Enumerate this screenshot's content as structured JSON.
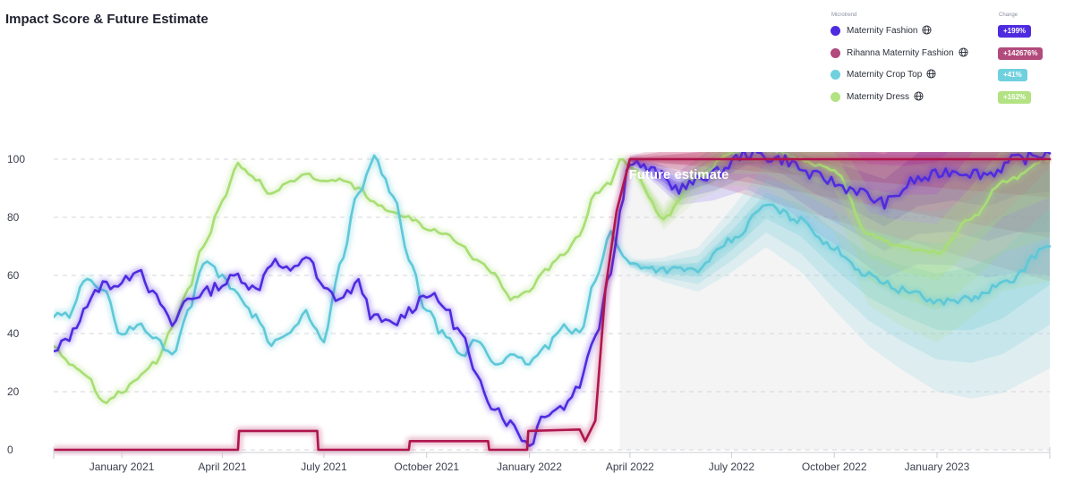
{
  "title": "Impact Score & Future Estimate",
  "legend": {
    "header_name": "Microtrend",
    "header_change": "Change",
    "items": [
      {
        "label": "Maternity Fashion",
        "change": "+199%",
        "color": "#4f2be0",
        "badge_color": "#4f2be0",
        "icon": "globe-icon"
      },
      {
        "label": "Rihanna Maternity Fashion",
        "change": "+142676%",
        "color": "#b24a7c",
        "badge_color": "#b24a7c",
        "icon": "globe-icon"
      },
      {
        "label": "Maternity Crop Top",
        "change": "+41%",
        "color": "#6fd0de",
        "badge_color": "#6fd0de",
        "icon": "globe-icon"
      },
      {
        "label": "Maternity Dress",
        "change": "+162%",
        "color": "#b2e283",
        "badge_color": "#b2e283",
        "icon": "globe-icon"
      }
    ]
  },
  "chart_data": {
    "type": "line",
    "title": "Impact Score & Future Estimate",
    "ylim": [
      0,
      100
    ],
    "yticks": [
      0,
      20,
      40,
      60,
      80,
      100
    ],
    "xlim": [
      "2020-11-01",
      "2023-04-12"
    ],
    "xticks": [
      {
        "label": "January 2021",
        "date": "2021-01-01"
      },
      {
        "label": "April 2021",
        "date": "2021-04-01"
      },
      {
        "label": "July 2021",
        "date": "2021-07-01"
      },
      {
        "label": "October 2021",
        "date": "2021-10-01"
      },
      {
        "label": "January 2022",
        "date": "2022-01-01"
      },
      {
        "label": "April 2022",
        "date": "2022-04-01"
      },
      {
        "label": "July 2022",
        "date": "2022-07-01"
      },
      {
        "label": "October 2022",
        "date": "2022-10-01"
      },
      {
        "label": "January 2023",
        "date": "2023-01-01"
      }
    ],
    "grid": true,
    "legend_position": "top-right",
    "estimate_label": "Future estimate",
    "estimate_start": "2022-03-23",
    "series": [
      {
        "name": "Maternity Fashion",
        "color": "#4f2be0",
        "points": [
          [
            "2020-11-01",
            33
          ],
          [
            "2020-11-15",
            39
          ],
          [
            "2020-12-01",
            50
          ],
          [
            "2020-12-15",
            57
          ],
          [
            "2021-01-01",
            57
          ],
          [
            "2021-01-15",
            63
          ],
          [
            "2021-02-01",
            52
          ],
          [
            "2021-02-15",
            43
          ],
          [
            "2021-03-01",
            52
          ],
          [
            "2021-03-15",
            54
          ],
          [
            "2021-04-01",
            57
          ],
          [
            "2021-04-15",
            60
          ],
          [
            "2021-05-01",
            55
          ],
          [
            "2021-05-15",
            65
          ],
          [
            "2021-06-01",
            61
          ],
          [
            "2021-06-15",
            67
          ],
          [
            "2021-07-01",
            55
          ],
          [
            "2021-07-15",
            52
          ],
          [
            "2021-08-01",
            57
          ],
          [
            "2021-08-15",
            45
          ],
          [
            "2021-09-01",
            43
          ],
          [
            "2021-09-15",
            48
          ],
          [
            "2021-10-01",
            54
          ],
          [
            "2021-10-15",
            50
          ],
          [
            "2021-11-01",
            40
          ],
          [
            "2021-11-15",
            24
          ],
          [
            "2021-12-01",
            15
          ],
          [
            "2021-12-15",
            9
          ],
          [
            "2022-01-01",
            2
          ],
          [
            "2022-01-15",
            13
          ],
          [
            "2022-02-01",
            15
          ],
          [
            "2022-02-15",
            23
          ],
          [
            "2022-03-01",
            40
          ],
          [
            "2022-03-15",
            62
          ],
          [
            "2022-03-23",
            82
          ],
          [
            "2022-04-01",
            100
          ],
          [
            "2022-04-20",
            96
          ],
          [
            "2022-05-15",
            90
          ],
          [
            "2022-06-15",
            95
          ],
          [
            "2022-07-15",
            102
          ],
          [
            "2022-08-15",
            100
          ],
          [
            "2022-09-15",
            94
          ],
          [
            "2022-10-15",
            90
          ],
          [
            "2022-11-15",
            85
          ],
          [
            "2022-12-15",
            93
          ],
          [
            "2023-01-15",
            96
          ],
          [
            "2023-02-15",
            95
          ],
          [
            "2023-03-15",
            100
          ],
          [
            "2023-04-12",
            102
          ]
        ]
      },
      {
        "name": "Rihanna Maternity Fashion",
        "color": "#b0154e",
        "points": [
          [
            "2020-11-01",
            0
          ],
          [
            "2021-04-15",
            0
          ],
          [
            "2021-04-16",
            6.5
          ],
          [
            "2021-06-25",
            6.5
          ],
          [
            "2021-06-26",
            0
          ],
          [
            "2021-09-15",
            0
          ],
          [
            "2021-09-16",
            3
          ],
          [
            "2021-11-25",
            3
          ],
          [
            "2021-11-26",
            0
          ],
          [
            "2021-12-30",
            0
          ],
          [
            "2021-12-31",
            6.5
          ],
          [
            "2022-02-15",
            7
          ],
          [
            "2022-02-20",
            3
          ],
          [
            "2022-03-01",
            10
          ],
          [
            "2022-03-10",
            55
          ],
          [
            "2022-03-20",
            82
          ],
          [
            "2022-04-01",
            100
          ],
          [
            "2022-05-01",
            100
          ],
          [
            "2022-06-15",
            100
          ],
          [
            "2022-08-01",
            100
          ],
          [
            "2022-10-01",
            100
          ],
          [
            "2022-12-01",
            100
          ],
          [
            "2023-02-01",
            100
          ],
          [
            "2023-04-12",
            100
          ]
        ]
      },
      {
        "name": "Maternity Crop Top",
        "color": "#5ec8d8",
        "points": [
          [
            "2020-11-01",
            46
          ],
          [
            "2020-11-15",
            46
          ],
          [
            "2020-12-01",
            60
          ],
          [
            "2020-12-15",
            55
          ],
          [
            "2021-01-01",
            40
          ],
          [
            "2021-01-15",
            43
          ],
          [
            "2021-02-01",
            38
          ],
          [
            "2021-02-15",
            33
          ],
          [
            "2021-03-01",
            47
          ],
          [
            "2021-03-15",
            65
          ],
          [
            "2021-04-01",
            60
          ],
          [
            "2021-04-15",
            53
          ],
          [
            "2021-05-01",
            46
          ],
          [
            "2021-05-15",
            37
          ],
          [
            "2021-06-01",
            40
          ],
          [
            "2021-06-15",
            47
          ],
          [
            "2021-07-01",
            37
          ],
          [
            "2021-07-15",
            63
          ],
          [
            "2021-08-01",
            88
          ],
          [
            "2021-08-15",
            100
          ],
          [
            "2021-09-01",
            88
          ],
          [
            "2021-09-15",
            65
          ],
          [
            "2021-10-01",
            48
          ],
          [
            "2021-10-15",
            40
          ],
          [
            "2021-11-01",
            32
          ],
          [
            "2021-11-15",
            38
          ],
          [
            "2021-12-01",
            30
          ],
          [
            "2021-12-15",
            32
          ],
          [
            "2022-01-01",
            30
          ],
          [
            "2022-01-15",
            35
          ],
          [
            "2022-02-01",
            42
          ],
          [
            "2022-02-15",
            40
          ],
          [
            "2022-03-01",
            58
          ],
          [
            "2022-03-15",
            76
          ],
          [
            "2022-03-23",
            68
          ],
          [
            "2022-04-01",
            64
          ],
          [
            "2022-05-01",
            62
          ],
          [
            "2022-06-01",
            62
          ],
          [
            "2022-07-01",
            72
          ],
          [
            "2022-08-01",
            84
          ],
          [
            "2022-09-01",
            79
          ],
          [
            "2022-10-01",
            69
          ],
          [
            "2022-11-01",
            60
          ],
          [
            "2022-12-01",
            55
          ],
          [
            "2023-01-01",
            51
          ],
          [
            "2023-02-01",
            52
          ],
          [
            "2023-03-01",
            57
          ],
          [
            "2023-04-12",
            70
          ]
        ]
      },
      {
        "name": "Maternity Dress",
        "color": "#a8de74",
        "points": [
          [
            "2020-11-01",
            36
          ],
          [
            "2020-11-15",
            30
          ],
          [
            "2020-12-01",
            25
          ],
          [
            "2020-12-15",
            16
          ],
          [
            "2021-01-01",
            20
          ],
          [
            "2021-01-15",
            25
          ],
          [
            "2021-02-01",
            30
          ],
          [
            "2021-02-15",
            42
          ],
          [
            "2021-03-01",
            55
          ],
          [
            "2021-03-15",
            70
          ],
          [
            "2021-04-01",
            85
          ],
          [
            "2021-04-15",
            98
          ],
          [
            "2021-05-01",
            93
          ],
          [
            "2021-05-15",
            88
          ],
          [
            "2021-06-01",
            92
          ],
          [
            "2021-06-15",
            95
          ],
          [
            "2021-07-01",
            92
          ],
          [
            "2021-07-15",
            93
          ],
          [
            "2021-08-01",
            90
          ],
          [
            "2021-08-15",
            85
          ],
          [
            "2021-09-01",
            82
          ],
          [
            "2021-09-15",
            80
          ],
          [
            "2021-10-01",
            76
          ],
          [
            "2021-10-15",
            75
          ],
          [
            "2021-11-01",
            70
          ],
          [
            "2021-11-15",
            65
          ],
          [
            "2021-12-01",
            60
          ],
          [
            "2021-12-15",
            52
          ],
          [
            "2022-01-01",
            55
          ],
          [
            "2022-01-15",
            62
          ],
          [
            "2022-02-01",
            67
          ],
          [
            "2022-02-15",
            74
          ],
          [
            "2022-03-01",
            88
          ],
          [
            "2022-03-15",
            92
          ],
          [
            "2022-03-23",
            100
          ],
          [
            "2022-04-01",
            98
          ],
          [
            "2022-05-01",
            80
          ],
          [
            "2022-06-01",
            94
          ],
          [
            "2022-07-01",
            102
          ],
          [
            "2022-08-01",
            104
          ],
          [
            "2022-09-01",
            100
          ],
          [
            "2022-10-01",
            96
          ],
          [
            "2022-11-01",
            74
          ],
          [
            "2022-12-01",
            70
          ],
          [
            "2023-01-01",
            68
          ],
          [
            "2023-02-01",
            80
          ],
          [
            "2023-03-01",
            92
          ],
          [
            "2023-04-12",
            100
          ]
        ]
      }
    ]
  }
}
